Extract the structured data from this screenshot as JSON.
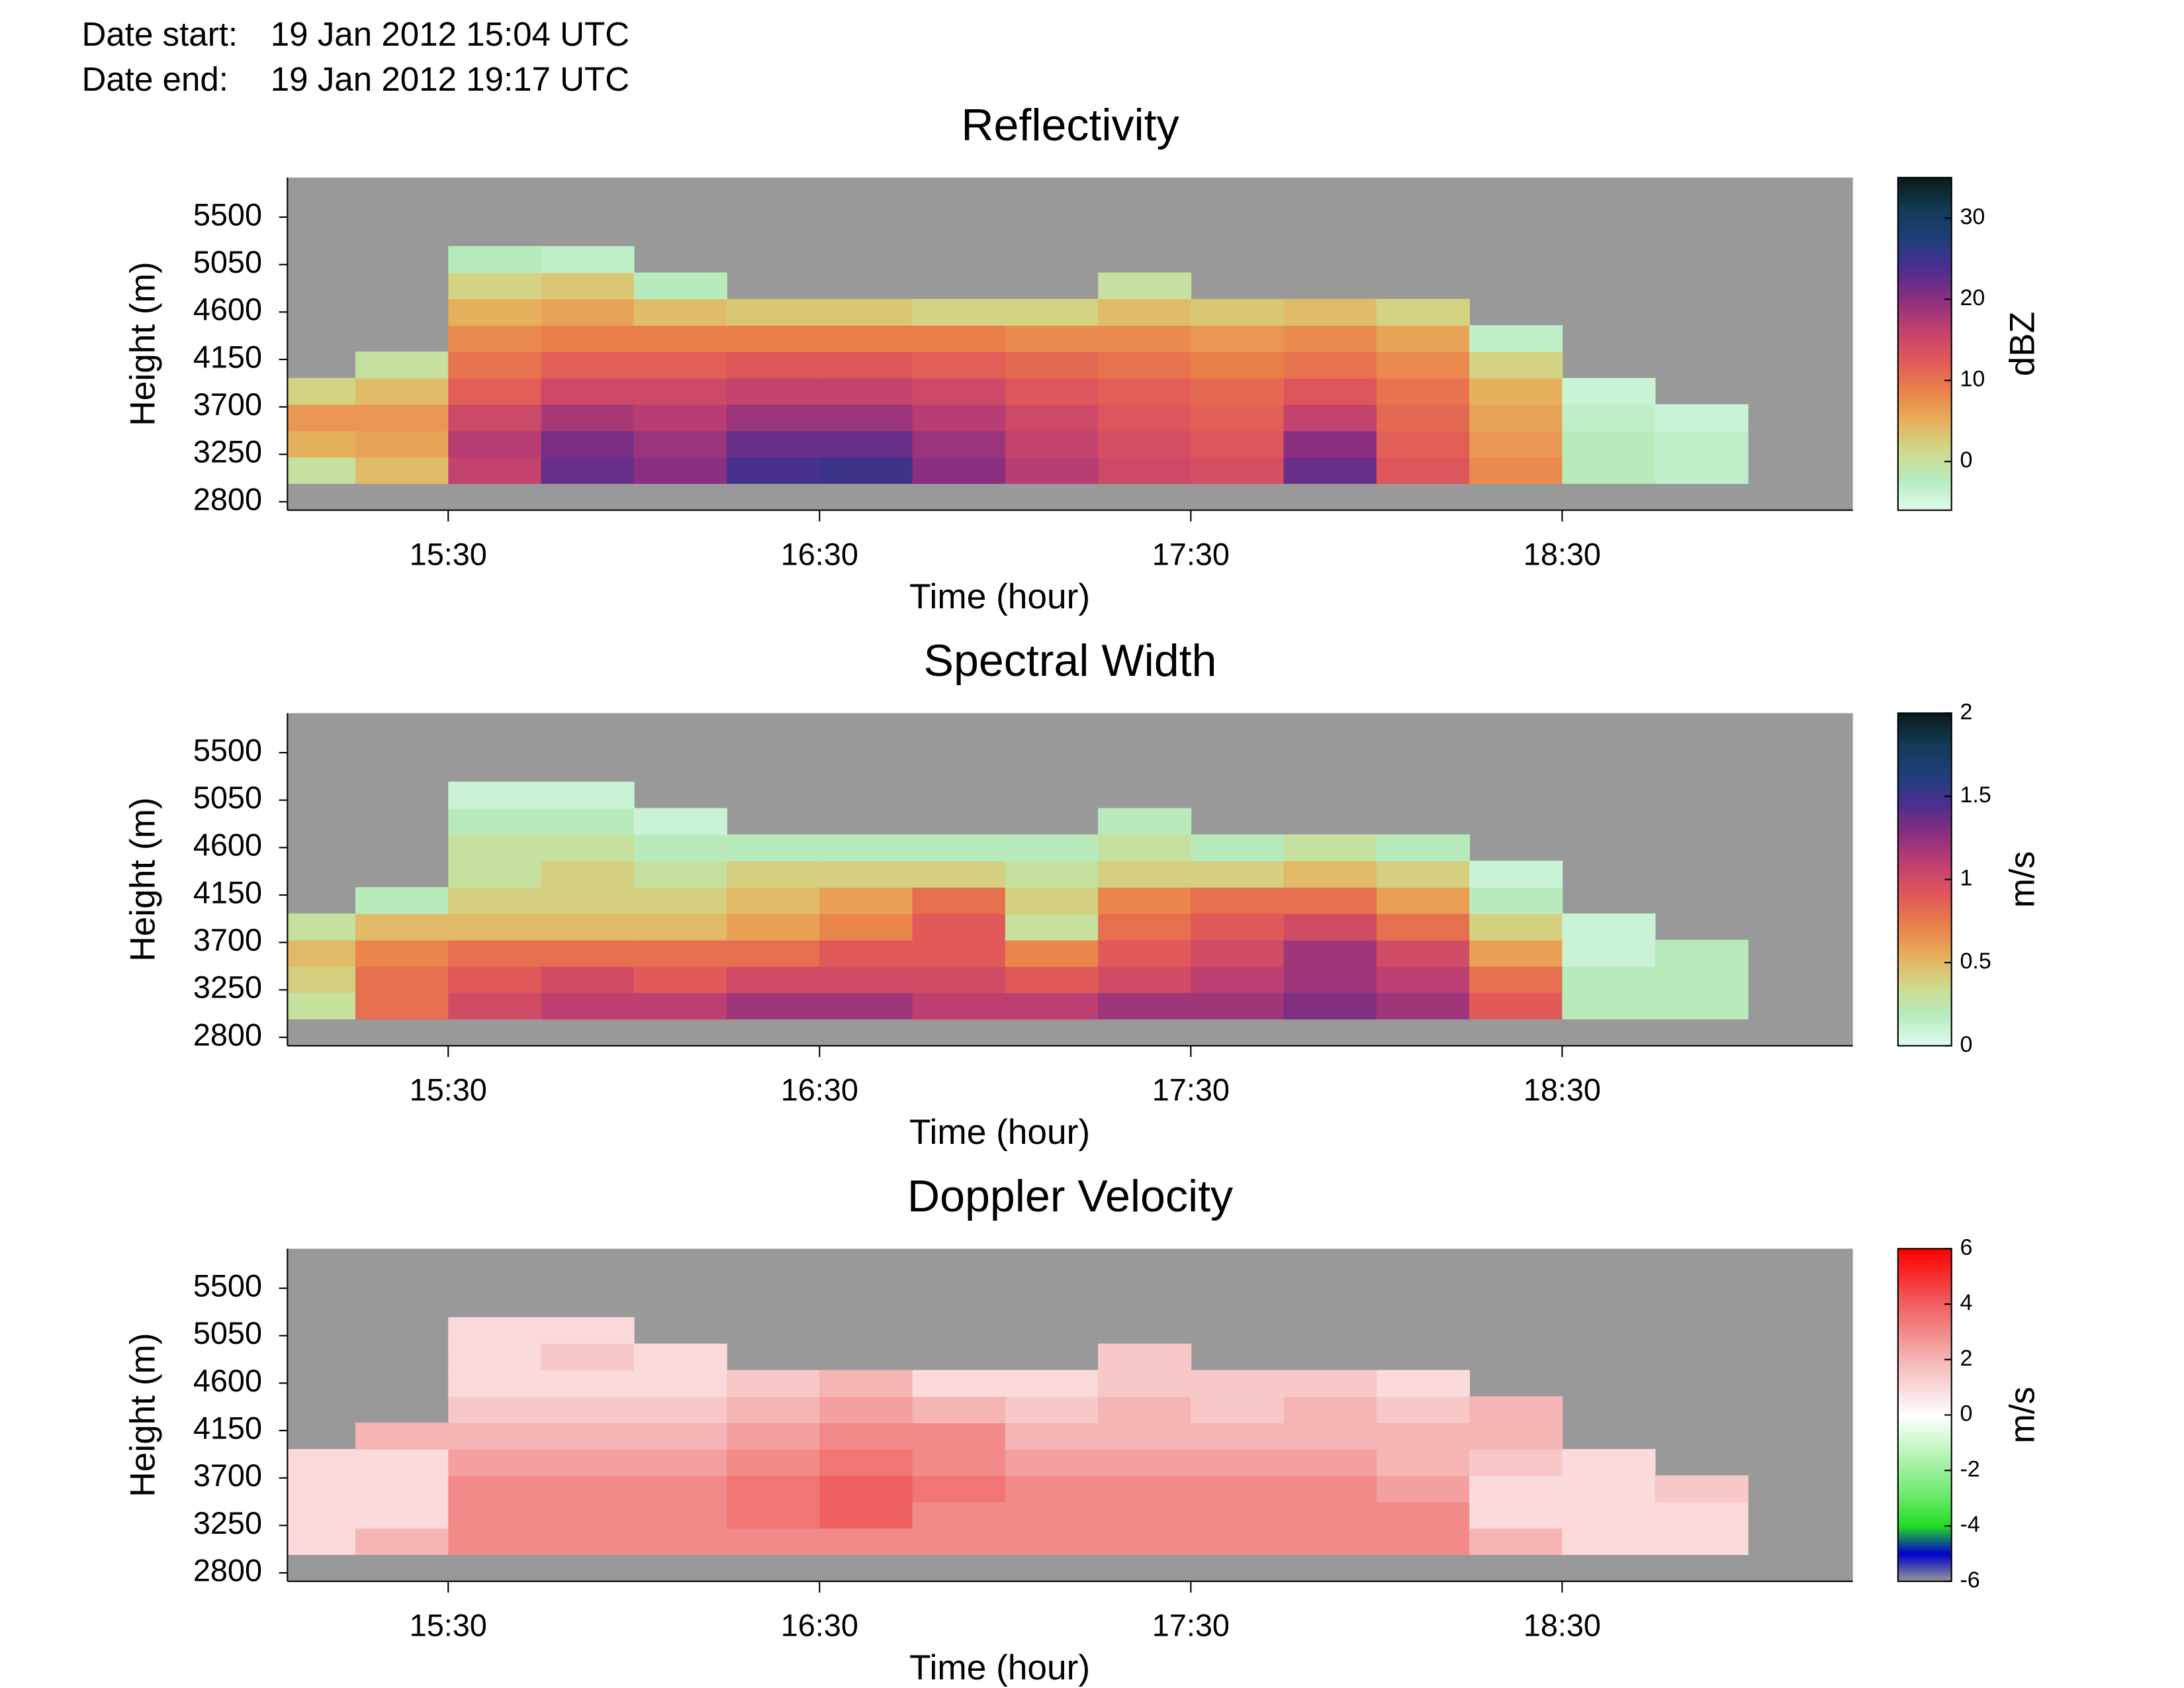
{
  "header": {
    "labels": [
      "Date start:",
      "Date end:"
    ],
    "values": [
      "19 Jan 2012 15:04 UTC",
      "19 Jan 2012 19:17 UTC"
    ]
  },
  "chart_data": [
    {
      "type": "heatmap",
      "title": "Reflectivity",
      "xlabel": "Time (hour)",
      "ylabel": "Height (m)",
      "x": [
        15.125,
        15.375,
        15.625,
        15.875,
        16.125,
        16.375,
        16.625,
        16.875,
        17.125,
        17.375,
        17.625,
        17.875,
        18.125,
        18.375,
        18.625,
        18.875
      ],
      "y": [
        3100,
        3350,
        3600,
        3850,
        4100,
        4350,
        4600,
        4850,
        5100
      ],
      "z": [
        [
          0,
          4,
          16,
          22,
          20,
          24,
          25,
          20,
          17,
          15,
          14,
          22,
          13,
          8,
          -2,
          -3
        ],
        [
          5,
          6,
          17,
          21,
          19,
          22,
          22,
          19,
          16,
          14,
          13,
          20,
          12,
          7,
          -2,
          -3
        ],
        [
          7,
          7,
          15,
          18,
          17,
          19,
          19,
          17,
          15,
          13,
          12,
          16,
          11,
          6,
          -3,
          -4
        ],
        [
          2,
          4,
          12,
          15,
          15,
          16,
          16,
          15,
          13,
          12,
          11,
          13,
          10,
          5,
          -4,
          null
        ],
        [
          null,
          0,
          10,
          12,
          12,
          13,
          13,
          12,
          11,
          10,
          9,
          10,
          8,
          2,
          null,
          null
        ],
        [
          null,
          null,
          8,
          9,
          9,
          9,
          9,
          9,
          8,
          8,
          7,
          8,
          6,
          -3,
          null,
          null
        ],
        [
          null,
          null,
          5,
          6,
          4,
          3,
          3,
          2,
          2,
          4,
          3,
          4,
          2,
          null,
          null,
          null
        ],
        [
          null,
          null,
          2,
          3,
          -2,
          null,
          null,
          null,
          null,
          0,
          null,
          null,
          null,
          null,
          null,
          null
        ],
        [
          null,
          null,
          -2,
          -3,
          null,
          null,
          null,
          null,
          null,
          null,
          null,
          null,
          null,
          null,
          null,
          null
        ]
      ],
      "xlim": [
        15.067,
        19.283
      ],
      "ylim": [
        2720,
        5875
      ],
      "xticks": [
        {
          "value": 15.5,
          "label": "15:30"
        },
        {
          "value": 16.5,
          "label": "16:30"
        },
        {
          "value": 17.5,
          "label": "17:30"
        },
        {
          "value": 18.5,
          "label": "18:30"
        }
      ],
      "yticks": [
        2800,
        3250,
        3700,
        4150,
        4600,
        5050,
        5500
      ],
      "background": "#999999",
      "colorbar": {
        "label": "dBZ",
        "clim": [
          -6,
          35
        ],
        "ticks": [
          0,
          10,
          20,
          30
        ],
        "colors": [
          "#e2fbef",
          "#b6ecc0",
          "#cfd98a",
          "#e8ae5a",
          "#ea7f4a",
          "#e0585a",
          "#c04070",
          "#8a2f80",
          "#4a2f90",
          "#1f3f7a",
          "#133a55",
          "#0a1a1a"
        ]
      }
    },
    {
      "type": "heatmap",
      "title": "Spectral Width",
      "xlabel": "Time (hour)",
      "ylabel": "Height (m)",
      "x": [
        15.125,
        15.375,
        15.625,
        15.875,
        16.125,
        16.375,
        16.625,
        16.875,
        17.125,
        17.375,
        17.625,
        17.875,
        18.125,
        18.375,
        18.625,
        18.875
      ],
      "y": [
        3100,
        3350,
        3600,
        3850,
        4100,
        4350,
        4600,
        4850,
        5100
      ],
      "z": [
        [
          0.3,
          0.8,
          1.0,
          1.1,
          1.1,
          1.2,
          1.2,
          1.1,
          1.1,
          1.2,
          1.2,
          1.3,
          1.2,
          0.9,
          0.2,
          0.2
        ],
        [
          0.4,
          0.8,
          0.9,
          1.0,
          0.9,
          1.0,
          1.0,
          1.0,
          0.9,
          1.0,
          1.1,
          1.2,
          1.1,
          0.8,
          0.2,
          0.2
        ],
        [
          0.5,
          0.7,
          0.8,
          0.8,
          0.8,
          0.8,
          0.9,
          0.9,
          0.7,
          0.9,
          1.0,
          1.2,
          1.0,
          0.6,
          0.1,
          0.2
        ],
        [
          0.3,
          0.5,
          0.5,
          0.5,
          0.5,
          0.6,
          0.7,
          0.9,
          0.3,
          0.8,
          0.9,
          1.0,
          0.8,
          0.4,
          0.1,
          null
        ],
        [
          null,
          0.2,
          0.4,
          0.4,
          0.4,
          0.5,
          0.6,
          0.8,
          0.4,
          0.7,
          0.8,
          0.8,
          0.6,
          0.2,
          null,
          null
        ],
        [
          null,
          null,
          0.3,
          0.4,
          0.3,
          0.4,
          0.4,
          0.4,
          0.3,
          0.4,
          0.4,
          0.5,
          0.4,
          0.1,
          null,
          null
        ],
        [
          null,
          null,
          0.3,
          0.3,
          0.2,
          0.2,
          0.2,
          0.2,
          0.2,
          0.3,
          0.2,
          0.3,
          0.2,
          null,
          null,
          null
        ],
        [
          null,
          null,
          0.2,
          0.2,
          0.1,
          null,
          null,
          null,
          null,
          0.2,
          null,
          null,
          null,
          null,
          null,
          null
        ],
        [
          null,
          null,
          0.1,
          0.1,
          null,
          null,
          null,
          null,
          null,
          null,
          null,
          null,
          null,
          null,
          null,
          null
        ]
      ],
      "xlim": [
        15.067,
        19.283
      ],
      "ylim": [
        2720,
        5875
      ],
      "xticks": [
        {
          "value": 15.5,
          "label": "15:30"
        },
        {
          "value": 16.5,
          "label": "16:30"
        },
        {
          "value": 17.5,
          "label": "17:30"
        },
        {
          "value": 18.5,
          "label": "18:30"
        }
      ],
      "yticks": [
        2800,
        3250,
        3700,
        4150,
        4600,
        5050,
        5500
      ],
      "background": "#999999",
      "colorbar": {
        "label": "m/s",
        "clim": [
          0,
          2
        ],
        "ticks": [
          0,
          0.5,
          1,
          1.5,
          2
        ],
        "colors": [
          "#e2fbef",
          "#b6ecc0",
          "#cfd98a",
          "#e8ae5a",
          "#ea7f4a",
          "#e0585a",
          "#c04070",
          "#8a2f80",
          "#4a2f90",
          "#1f3f7a",
          "#133a55",
          "#0a1a1a"
        ]
      }
    },
    {
      "type": "heatmap",
      "title": "Doppler Velocity",
      "xlabel": "Time (hour)",
      "ylabel": "Height (m)",
      "x": [
        15.125,
        15.375,
        15.625,
        15.875,
        16.125,
        16.375,
        16.625,
        16.875,
        17.125,
        17.375,
        17.625,
        17.875,
        18.125,
        18.375,
        18.625,
        18.875
      ],
      "y": [
        3100,
        3350,
        3600,
        3850,
        4100,
        4350,
        4600,
        4850,
        5100
      ],
      "z": [
        [
          1,
          2,
          3,
          3,
          3,
          3,
          3,
          3,
          3,
          3,
          3,
          3,
          3,
          2,
          1,
          1
        ],
        [
          1,
          1,
          3,
          3,
          3,
          3.5,
          4,
          3,
          3,
          3,
          3,
          3,
          3,
          1,
          1,
          1
        ],
        [
          1,
          1,
          3,
          3,
          3,
          3.5,
          4,
          3.5,
          3,
          3,
          3,
          3,
          2.5,
          1,
          1,
          1.5
        ],
        [
          1,
          1,
          2.5,
          2.5,
          2.5,
          3,
          3.5,
          3,
          2.5,
          2.5,
          2.5,
          2.5,
          2,
          1.5,
          1,
          null
        ],
        [
          null,
          2,
          2,
          2,
          2,
          2.5,
          3,
          3,
          2,
          2,
          2,
          2,
          2,
          2,
          null,
          null
        ],
        [
          null,
          null,
          1.5,
          1.5,
          1.5,
          2,
          2.5,
          2,
          1.5,
          2,
          1.5,
          2,
          1.5,
          2,
          null,
          null
        ],
        [
          null,
          null,
          1,
          1,
          1,
          1.5,
          2,
          1,
          1,
          1.5,
          1.5,
          1.5,
          1,
          null,
          null,
          null
        ],
        [
          null,
          null,
          1,
          1.5,
          1,
          null,
          null,
          null,
          null,
          1.5,
          null,
          null,
          null,
          null,
          null,
          null
        ],
        [
          null,
          null,
          1,
          1,
          null,
          null,
          null,
          null,
          null,
          null,
          null,
          null,
          null,
          null,
          null,
          null
        ]
      ],
      "xlim": [
        15.067,
        19.283
      ],
      "ylim": [
        2720,
        5875
      ],
      "xticks": [
        {
          "value": 15.5,
          "label": "15:30"
        },
        {
          "value": 16.5,
          "label": "16:30"
        },
        {
          "value": 17.5,
          "label": "17:30"
        },
        {
          "value": 18.5,
          "label": "18:30"
        }
      ],
      "yticks": [
        2800,
        3250,
        3700,
        4150,
        4600,
        5050,
        5500
      ],
      "background": "#999999",
      "colorbar": {
        "label": "m/s",
        "clim": [
          -6,
          6
        ],
        "ticks": [
          -6,
          -4,
          -2,
          0,
          2,
          4,
          6
        ],
        "colors": [
          "#999999",
          "#0000cc",
          "#22dd22",
          "#66e866",
          "#99f099",
          "#ccf8cc",
          "#ffffff",
          "#fadada",
          "#f5b5b5",
          "#f28a8a",
          "#f06060",
          "#f53030",
          "#ff0000"
        ]
      }
    }
  ]
}
